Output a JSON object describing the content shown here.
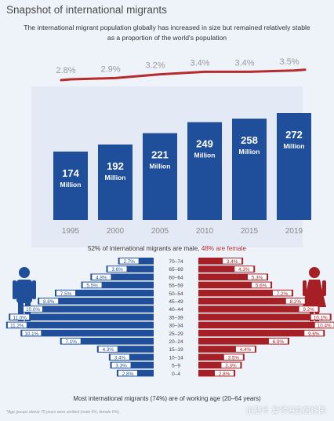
{
  "title": "Snapshot of international migrants",
  "subtitle": "The international migrant population globally has increased in size but remained relatively stable as a proportion of the world's population",
  "colors": {
    "bar_blue": "#1f4e9a",
    "female_red": "#a51f24",
    "line_red": "#b52b2e",
    "light_blue_band": "#e3eaf6"
  },
  "chart_data": [
    {
      "type": "bar",
      "categories": [
        "1995",
        "2000",
        "2005",
        "2010",
        "2015",
        "2019"
      ],
      "values": [
        174,
        192,
        221,
        249,
        258,
        272
      ],
      "value_labels": [
        "174",
        "192",
        "221",
        "249",
        "258",
        "272"
      ],
      "unit_label": "Million",
      "line_series": {
        "values": [
          2.8,
          2.9,
          3.2,
          3.4,
          3.4,
          3.5
        ],
        "labels": [
          "2.8%",
          "2.9%",
          "3.2%",
          "3.4%",
          "3.4%",
          "3.5%"
        ]
      }
    },
    {
      "type": "bar",
      "orientation": "horizontal-pyramid",
      "age_groups": [
        "70–74",
        "65–69",
        "60–64",
        "55–59",
        "50–54",
        "45–49",
        "40–44",
        "35–39",
        "30–34",
        "25–29",
        "20–24",
        "15–19",
        "10–14",
        "5–9",
        "0–4"
      ],
      "series": [
        {
          "values": [
            2.7,
            3.6,
            4.8,
            5.5,
            7.5,
            8.8,
            10.0,
            11.0,
            11.2,
            10.1,
            7.1,
            4.3,
            3.4,
            3.3,
            2.8
          ],
          "labels": [
            "2.7%",
            "3.6%",
            "4.8%",
            "5.5%",
            "7.5%",
            "8.8%",
            "10.0%",
            "11.0%",
            "11.2%",
            "10.1%",
            "7.1%",
            "4.3%",
            "3.4%",
            "3.3%",
            "2.8%"
          ]
        },
        {
          "values": [
            3.4,
            4.3,
            5.3,
            5.6,
            7.2,
            8.2,
            9.2,
            10.1,
            10.4,
            9.6,
            6.9,
            4.4,
            3.5,
            3.3,
            2.8
          ],
          "labels": [
            "3.4%",
            "4.3%",
            "5.3%",
            "5.6%",
            "7.2%",
            "8.2%",
            "9.2%",
            "10.1%",
            "10.4%",
            "9.6%",
            "6.9%",
            "4.4%",
            "3.5%",
            "3.3%",
            "2.8%"
          ]
        }
      ]
    }
  ],
  "gender_caption": {
    "male_part": "52% of international migrants are male,",
    "female_part": "48% are female"
  },
  "working_age_caption": "Most international migrants (74%) are of working age (20–64 years)",
  "footnote": "*Age groups above 75 years were omitted (male 4%, female 6%).",
  "watermark": "企鹅号 爱琴海宜居移民"
}
